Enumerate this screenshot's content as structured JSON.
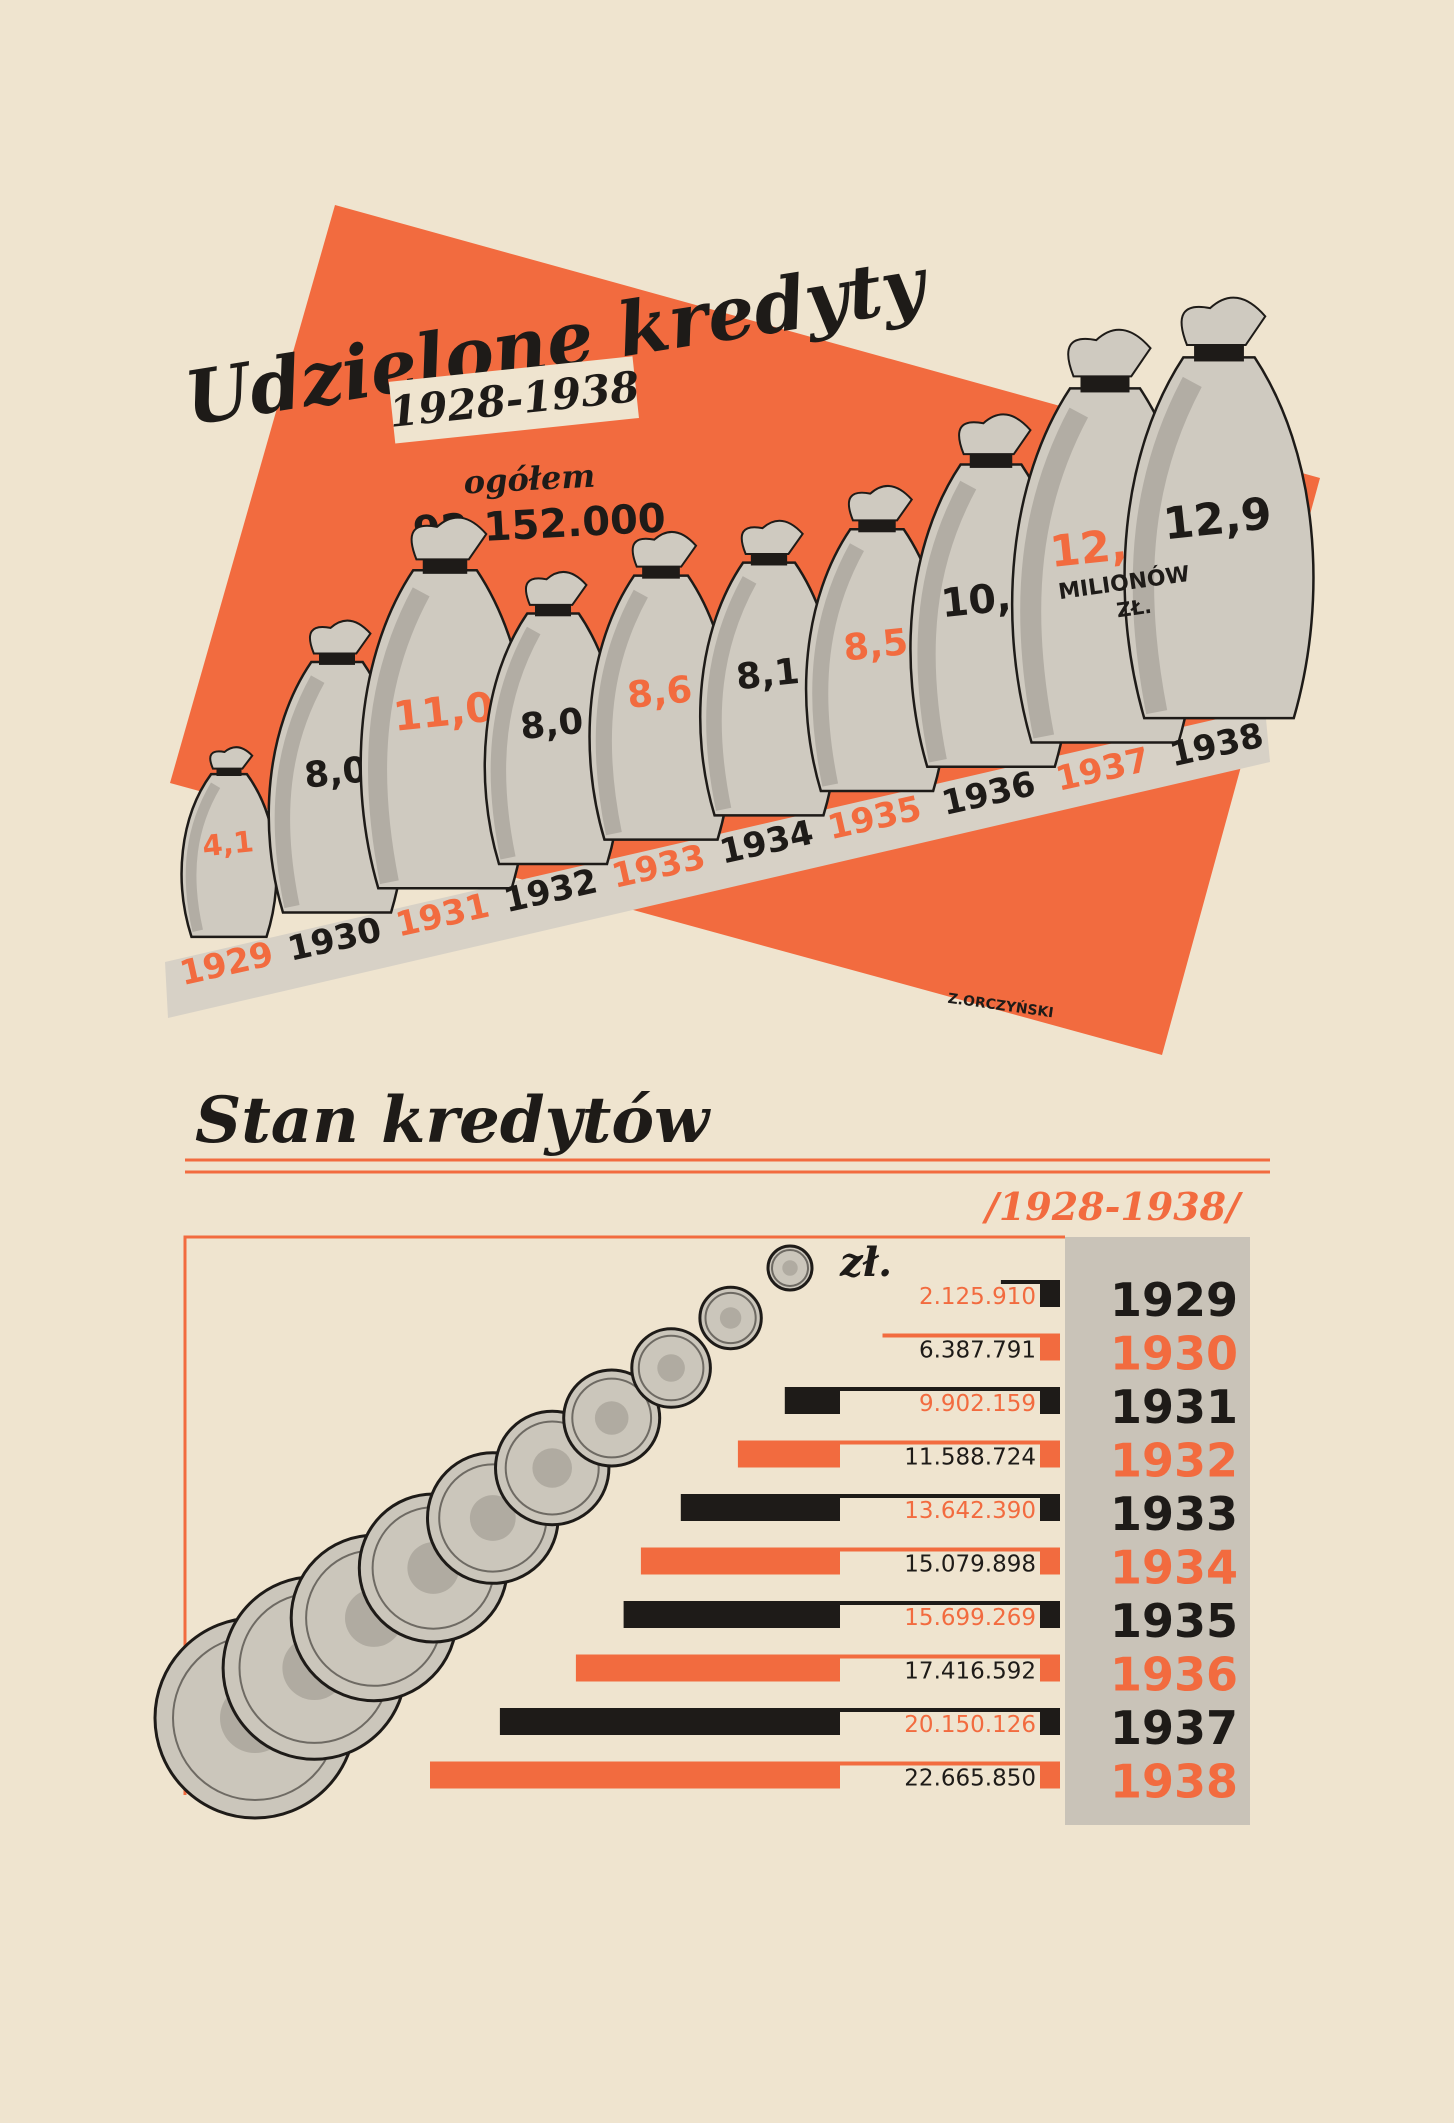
{
  "colors": {
    "paper": "#efe4cf",
    "orange": "#f26b3f",
    "black": "#1e1b18",
    "grey": "#c8c1b4",
    "sack": "#cfcac0",
    "sack_dark": "#8f8a82"
  },
  "top_chart": {
    "title": "Udzielone kredyty",
    "period": "1928-1938",
    "total_label": "ogółem",
    "total_value": "92.152.000",
    "unit_line1": "MILIONÓW",
    "unit_line2": "ZŁ.",
    "signature": "Z.ORCZYŃSKI"
  },
  "bottom_chart": {
    "title": "Stan kredytów",
    "period": "/1928-1938/",
    "unit": "zł."
  },
  "chart_data": [
    {
      "type": "bar",
      "title": "Udzielone kredyty",
      "subtitle": "1928-1938",
      "annotation": "ogółem 92.152.000",
      "categories": [
        "1929",
        "1930",
        "1931",
        "1932",
        "1933",
        "1934",
        "1935",
        "1936",
        "1937",
        "1938"
      ],
      "values": [
        4.1,
        8.0,
        11.0,
        8.0,
        8.6,
        8.1,
        8.5,
        10.3,
        12.6,
        12.9
      ],
      "value_labels": [
        "4,1",
        "8,0",
        "11,0",
        "8,0",
        "8,6",
        "8,1",
        "8,5",
        "10,3",
        "12,6",
        "12,9"
      ],
      "ylabel": "MILIONÓW ZŁ.",
      "grid": false
    },
    {
      "type": "bar",
      "orientation": "horizontal",
      "title": "Stan kredytów",
      "subtitle": "/1928-1938/",
      "ylabel": "zł.",
      "categories": [
        "1929",
        "1930",
        "1931",
        "1932",
        "1933",
        "1934",
        "1935",
        "1936",
        "1937",
        "1938"
      ],
      "values": [
        2125910,
        6387791,
        9902159,
        11588724,
        13642390,
        15079898,
        15699269,
        17416592,
        20150126,
        22665850
      ],
      "value_labels": [
        "2.125.910",
        "6.387.791",
        "9.902.159",
        "11.588.724",
        "13.642.390",
        "15.079.898",
        "15.699.269",
        "17.416.592",
        "20.150.126",
        "22.665.850"
      ],
      "xlim": [
        0,
        22665850
      ],
      "grid": false
    }
  ]
}
